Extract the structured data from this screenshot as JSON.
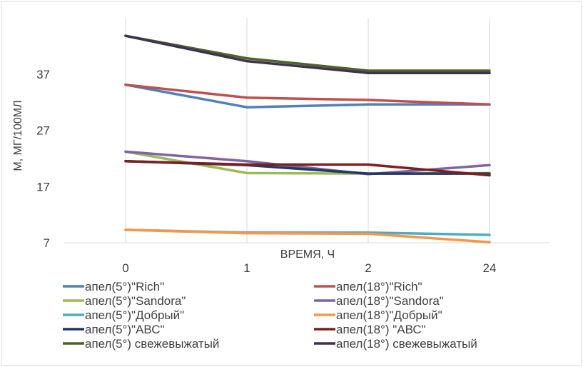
{
  "chart_data": {
    "type": "line",
    "title": "",
    "xlabel": "ВРЕМЯ, Ч",
    "ylabel": "М, МГ/100МЛ",
    "categories": [
      "0",
      "1",
      "2",
      "24"
    ],
    "ylim": [
      7,
      47
    ],
    "yticks": [
      7,
      17,
      27,
      37
    ],
    "grid": "vertical",
    "legend_position": "bottom",
    "series": [
      {
        "name": "апел(5°)\"Rich\"",
        "color": "#4f81bd",
        "values": [
          35.1,
          31.1,
          31.6,
          31.6
        ]
      },
      {
        "name": "апел(18°)\"Rich\"",
        "color": "#c0504d",
        "values": [
          35.1,
          32.8,
          32.4,
          31.6
        ]
      },
      {
        "name": "апел(5°)\"Sandora\"",
        "color": "#9bbb59",
        "values": [
          23.2,
          19.4,
          19.3,
          19.4
        ]
      },
      {
        "name": "апел(18°)\"Sandora\"",
        "color": "#8064a2",
        "values": [
          23.2,
          21.5,
          19.2,
          20.8
        ]
      },
      {
        "name": "апел(5°)\"Добрый\"",
        "color": "#4bacc6",
        "values": [
          9.3,
          8.8,
          8.8,
          8.4
        ]
      },
      {
        "name": "апел(18°)\"Добрый\"",
        "color": "#f79646",
        "values": [
          9.3,
          8.7,
          8.6,
          7.1
        ]
      },
      {
        "name": "апел(5°)\"АВС\"",
        "color": "#1f3864",
        "values": [
          21.5,
          20.8,
          19.3,
          19.3
        ]
      },
      {
        "name": "апел(18°) \"АВС\"",
        "color": "#7b2020",
        "values": [
          21.5,
          20.9,
          20.9,
          19.0
        ]
      },
      {
        "name": "апел(5°) свежевыжатый",
        "color": "#4f6228",
        "values": [
          43.8,
          39.8,
          37.6,
          37.6
        ]
      },
      {
        "name": "апел(18°) свежевыжатый",
        "color": "#403152",
        "values": [
          43.8,
          39.3,
          37.2,
          37.2
        ]
      }
    ]
  }
}
